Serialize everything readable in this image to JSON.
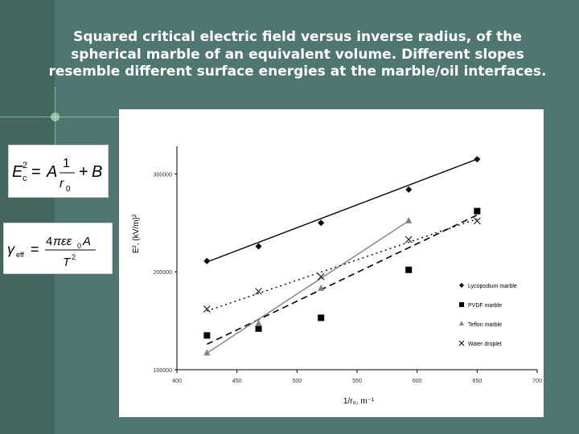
{
  "slide": {
    "title": "Squared critical electric field versus inverse radius, of the spherical marble of an equivalent volume. Different slopes resemble different surface energies at the marble/oil interfaces.",
    "background_color": "#4f7670"
  },
  "equations": {
    "eq1": "E_c^2 = A·(1/r_0) + B",
    "eq2": "γ_eff = 4πεε_0·A / T^2"
  },
  "chart_data": {
    "type": "scatter",
    "title": "",
    "xlabel": "1/r₀, m⁻¹",
    "ylabel": "E², (kV/m)²",
    "xlim": [
      400,
      700
    ],
    "ylim": [
      100000,
      320000
    ],
    "x_ticks": [
      "400",
      "450",
      "500",
      "550",
      "600",
      "650",
      "700"
    ],
    "y_ticks": [
      "100000",
      "200000",
      "300000"
    ],
    "grid": false,
    "legend_position": "right",
    "series": [
      {
        "name": "Lycopodium marble",
        "marker": "diamond",
        "color": "#000000",
        "line": "solid",
        "x": [
          425,
          468,
          520,
          593,
          650
        ],
        "y": [
          211000,
          226000,
          250000,
          284000,
          315000
        ],
        "fit": [
          [
            425,
            210000
          ],
          [
            652,
            316000
          ]
        ]
      },
      {
        "name": "PVDF marble",
        "marker": "square",
        "color": "#000000",
        "line": "dashed",
        "x": [
          425,
          468,
          520,
          593,
          650
        ],
        "y": [
          135000,
          142000,
          153000,
          202000,
          262000
        ],
        "fit": [
          [
            425,
            126000
          ],
          [
            650,
            258000
          ]
        ]
      },
      {
        "name": "Teflon marble",
        "marker": "triangle",
        "color": "#808080",
        "line": "solid",
        "x": [
          425,
          468,
          520,
          593
        ],
        "y": [
          117000,
          147000,
          183000,
          252000
        ],
        "fit": [
          [
            425,
            117000
          ],
          [
            593,
            252000
          ]
        ]
      },
      {
        "name": "Water droplet",
        "marker": "x",
        "color": "#000000",
        "line": "dotted",
        "x": [
          425,
          468,
          520,
          593,
          650
        ],
        "y": [
          162000,
          180000,
          195000,
          233000,
          252000
        ],
        "fit": [
          [
            425,
            160000
          ],
          [
            650,
            254000
          ]
        ]
      }
    ]
  }
}
